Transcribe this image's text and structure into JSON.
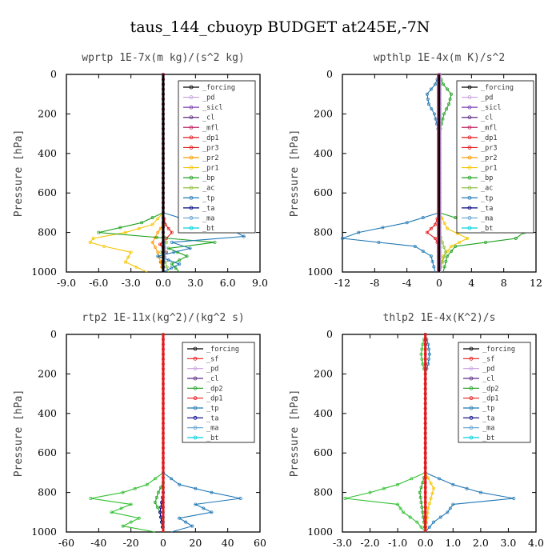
{
  "figure_title": "taus_144_cbuoyp  BUDGET at245E,-7N",
  "chart_data": [
    {
      "type": "line",
      "title": "wprtp  1E-7x(m kg)/(s^2 kg)",
      "ylabel": "Pressure [hPa]",
      "xlim": [
        -9,
        9
      ],
      "ylim": [
        1000,
        0
      ],
      "xticks": [
        "-9.0",
        "-6.0",
        "-3.0",
        "0.0",
        "3.0",
        "6.0",
        "9.0"
      ],
      "yticks": [
        "0",
        "200",
        "400",
        "600",
        "800",
        "1000"
      ],
      "legend": [
        "_forcing",
        "_pd",
        "_sicl",
        "_cl",
        "_mfl",
        "_dp1",
        "_pr3",
        "_pr2",
        "_pr1",
        "_bp",
        "_ac",
        "_tp",
        "_ta",
        "_ma",
        "_bt"
      ],
      "series": [
        {
          "name": "_forcing",
          "color": "#000000",
          "p": [
            0,
            100,
            200,
            300,
            400,
            500,
            600,
            700,
            800,
            900,
            1000
          ],
          "x": [
            0,
            0,
            0,
            0,
            0,
            0,
            0,
            0,
            0,
            0,
            0
          ]
        },
        {
          "name": "_dp1",
          "color": "#e41a1c",
          "p": [
            700,
            760,
            800,
            830,
            860,
            900,
            950,
            1000
          ],
          "x": [
            0,
            0.2,
            0.8,
            0.3,
            -0.3,
            0.3,
            -0.2,
            0
          ]
        },
        {
          "name": "_pr1",
          "color": "#f5c400",
          "p": [
            700,
            760,
            800,
            830,
            850,
            870,
            900,
            950,
            1000
          ],
          "x": [
            0,
            -1,
            -3.5,
            -6.5,
            -6.8,
            -5.5,
            -3,
            -3.5,
            -1.5
          ]
        },
        {
          "name": "_pr2",
          "color": "#ff9a00",
          "p": [
            760,
            800,
            850,
            900,
            1000
          ],
          "x": [
            0,
            -0.5,
            -1,
            -0.5,
            0
          ]
        },
        {
          "name": "_bp",
          "color": "#1fa01f",
          "p": [
            700,
            750,
            800,
            850,
            880,
            920,
            960,
            1000
          ],
          "x": [
            0,
            -2,
            -6,
            4.8,
            0.5,
            2.2,
            0.8,
            1.5
          ]
        },
        {
          "name": "_ac",
          "color": "#90c040",
          "p": [
            800,
            850,
            900,
            950,
            1000
          ],
          "x": [
            0,
            0.3,
            -0.2,
            0.2,
            0.5
          ]
        },
        {
          "name": "_tp",
          "color": "#1f77b4",
          "p": [
            700,
            750,
            790,
            820,
            850,
            880,
            920,
            960,
            1000
          ],
          "x": [
            0,
            3,
            6.5,
            7.5,
            0.8,
            2.5,
            -0.5,
            1.5,
            0
          ]
        },
        {
          "name": "_ma",
          "color": "#5fa0d0",
          "p": [
            800,
            900,
            1000
          ],
          "x": [
            0,
            0.2,
            0
          ]
        },
        {
          "name": "_bt",
          "color": "#00d0e0",
          "p": [
            700,
            1000
          ],
          "x": [
            0,
            0
          ]
        },
        {
          "name": "_mfl",
          "color": "#c02060",
          "p": [
            0,
            1000
          ],
          "x": [
            0,
            0
          ]
        }
      ]
    },
    {
      "type": "line",
      "title": "wpthlp  1E-4x(m K)/s^2",
      "ylabel": "Pressure [hPa]",
      "xlim": [
        -12,
        12
      ],
      "ylim": [
        1000,
        0
      ],
      "xticks": [
        "-12",
        "-8",
        "-4",
        "0",
        "4",
        "8",
        "12"
      ],
      "yticks": [
        "0",
        "200",
        "400",
        "600",
        "800",
        "1000"
      ],
      "legend": [
        "_forcing",
        "_pd",
        "_sicl",
        "_cl",
        "_mfl",
        "_dp1",
        "_pr3",
        "_pr2",
        "_pr1",
        "_bp",
        "_ac",
        "_tp",
        "_ta",
        "_ma",
        "_bt"
      ],
      "series": [
        {
          "name": "_bp",
          "color": "#1fa01f",
          "p": [
            0,
            50,
            100,
            150,
            200,
            250,
            300,
            700,
            750,
            800,
            830,
            870,
            920,
            1000
          ],
          "x": [
            0,
            0.5,
            1.5,
            1.2,
            0.6,
            0.3,
            0,
            0,
            4,
            10.5,
            9.5,
            2,
            1,
            0.5
          ]
        },
        {
          "name": "_tp",
          "color": "#1f77b4",
          "p": [
            0,
            50,
            100,
            150,
            200,
            250,
            300,
            700,
            750,
            800,
            830,
            870,
            920,
            1000
          ],
          "x": [
            0,
            -0.5,
            -1.5,
            -1.3,
            -0.6,
            -0.3,
            0,
            0,
            -4,
            -10,
            -12,
            -3,
            -1,
            -0.5
          ]
        },
        {
          "name": "_dp1",
          "color": "#e41a1c",
          "p": [
            700,
            760,
            800,
            830,
            870,
            1000
          ],
          "x": [
            0,
            -0.5,
            -1.5,
            -0.5,
            0,
            0
          ]
        },
        {
          "name": "_pr1",
          "color": "#f5c400",
          "p": [
            700,
            780,
            830,
            870,
            920,
            1000
          ],
          "x": [
            0,
            1,
            3.5,
            1.5,
            0.5,
            0
          ]
        },
        {
          "name": "_ac",
          "color": "#90c040",
          "p": [
            800,
            900,
            1000
          ],
          "x": [
            0,
            0.8,
            0
          ]
        },
        {
          "name": "_mfl",
          "color": "#c02060",
          "p": [
            0,
            1000
          ],
          "x": [
            0,
            0
          ]
        },
        {
          "name": "_pd",
          "color": "#c8a0e0",
          "p": [
            0,
            1000
          ],
          "x": [
            0.1,
            0.1
          ]
        }
      ]
    },
    {
      "type": "line",
      "title": "rtp2  1E-11x(kg^2)/(kg^2 s)",
      "ylabel": "Pressure [hPa]",
      "xlim": [
        -60,
        60
      ],
      "ylim": [
        1000,
        0
      ],
      "xticks": [
        "-60",
        "-40",
        "-20",
        "0",
        "20",
        "40",
        "60"
      ],
      "yticks": [
        "0",
        "200",
        "400",
        "600",
        "800",
        "1000"
      ],
      "legend": [
        "_forcing",
        "_sf",
        "_pd",
        "_cl",
        "_dp2",
        "_dp1",
        "_tp",
        "_ta",
        "_ma",
        "_bt"
      ],
      "series": [
        {
          "name": "_forcing",
          "color": "#e41a1c",
          "p": [
            0,
            1000
          ],
          "x": [
            0,
            0
          ]
        },
        {
          "name": "_dp1",
          "color": "#2fbf2f",
          "p": [
            700,
            760,
            800,
            830,
            860,
            900,
            930,
            970,
            1000
          ],
          "x": [
            0,
            -10,
            -25,
            -45,
            -20,
            -32,
            -15,
            -25,
            -5
          ]
        },
        {
          "name": "_dp2",
          "color": "#1fa01f",
          "p": [
            750,
            800,
            850,
            900,
            1000
          ],
          "x": [
            0,
            -3,
            -5,
            -2,
            0
          ]
        },
        {
          "name": "_tp",
          "color": "#1f77b4",
          "p": [
            700,
            760,
            800,
            830,
            860,
            900,
            930,
            970,
            1000
          ],
          "x": [
            0,
            10,
            30,
            48,
            20,
            30,
            10,
            18,
            5
          ]
        },
        {
          "name": "_ta",
          "color": "#000080",
          "p": [
            800,
            900,
            1000
          ],
          "x": [
            0,
            -2,
            0
          ]
        },
        {
          "name": "_bt",
          "color": "#00d0e0",
          "p": [
            900,
            1000
          ],
          "x": [
            0,
            0
          ]
        }
      ]
    },
    {
      "type": "line",
      "title": "thlp2  1E-4x(K^2)/s",
      "ylabel": "Pressure [hPa]",
      "xlim": [
        -3,
        4
      ],
      "ylim": [
        1000,
        0
      ],
      "xticks": [
        "-3.0",
        "-2.0",
        "-1.0",
        "0.0",
        "1.0",
        "2.0",
        "3.0",
        "4.0"
      ],
      "yticks": [
        "0",
        "200",
        "400",
        "600",
        "800",
        "1000"
      ],
      "legend": [
        "_forcing",
        "_sf",
        "_pd",
        "_cl",
        "_dp2",
        "_dp1",
        "_tp",
        "_ta",
        "_ma",
        "_bt"
      ],
      "series": [
        {
          "name": "_dp1",
          "color": "#2fbf2f",
          "p": [
            0,
            50,
            100,
            150,
            200,
            700,
            760,
            800,
            830,
            860,
            900,
            950,
            1000
          ],
          "x": [
            0,
            -0.1,
            -0.15,
            -0.1,
            0,
            0,
            -1,
            -2,
            -2.9,
            -1,
            -0.8,
            -0.3,
            0
          ]
        },
        {
          "name": "_tp",
          "color": "#1f77b4",
          "p": [
            0,
            50,
            100,
            150,
            200,
            700,
            760,
            800,
            830,
            860,
            900,
            950,
            1000
          ],
          "x": [
            0,
            0.1,
            0.15,
            0.1,
            0,
            0,
            1,
            2,
            3.2,
            1,
            0.8,
            0.3,
            0
          ]
        },
        {
          "name": "_cl",
          "color": "#f5c400",
          "p": [
            700,
            780,
            830,
            880,
            1000
          ],
          "x": [
            0,
            0.3,
            0.2,
            0.1,
            0
          ]
        },
        {
          "name": "_dp2",
          "color": "#1fa01f",
          "p": [
            700,
            800,
            1000
          ],
          "x": [
            0,
            -0.2,
            0
          ]
        },
        {
          "name": "_forcing",
          "color": "#e41a1c",
          "p": [
            0,
            1000
          ],
          "x": [
            0,
            0
          ]
        }
      ]
    }
  ]
}
